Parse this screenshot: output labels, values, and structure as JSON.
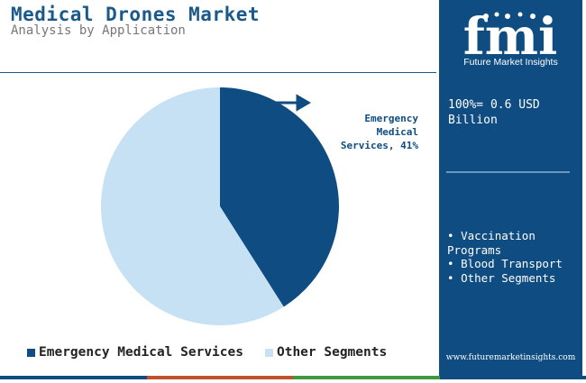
{
  "header": {
    "title": "Medical Drones Market",
    "subtitle": "Analysis by Application"
  },
  "chart_data": {
    "type": "pie",
    "title": "Medical Drones Market",
    "subtitle": "Analysis by Application",
    "slices": [
      {
        "label": "Emergency Medical Services",
        "value": 41,
        "color": "#0f4c81"
      },
      {
        "label": "Other Segments",
        "value": 59,
        "color": "#c5e1f3"
      }
    ],
    "data_label": "Emergency Medical Services, 41%",
    "legend_position": "bottom-left"
  },
  "legend": {
    "items": [
      "Emergency Medical Services",
      "Other Segments"
    ]
  },
  "side_panel": {
    "logo_text": "fmi",
    "logo_tagline": "Future Market Insights",
    "total": "100%= 0.6 USD Billion",
    "applications": [
      "Vaccination Programs",
      "Blood Transport",
      "Other Segments"
    ],
    "url": "www.futuremarketinsights.com"
  },
  "colors": {
    "primary": "#0f4c81",
    "secondary": "#c5e1f3",
    "footer_stripe": [
      "#0f4c81",
      "#c0522b",
      "#3f9a3f",
      "#0f4c81"
    ]
  }
}
